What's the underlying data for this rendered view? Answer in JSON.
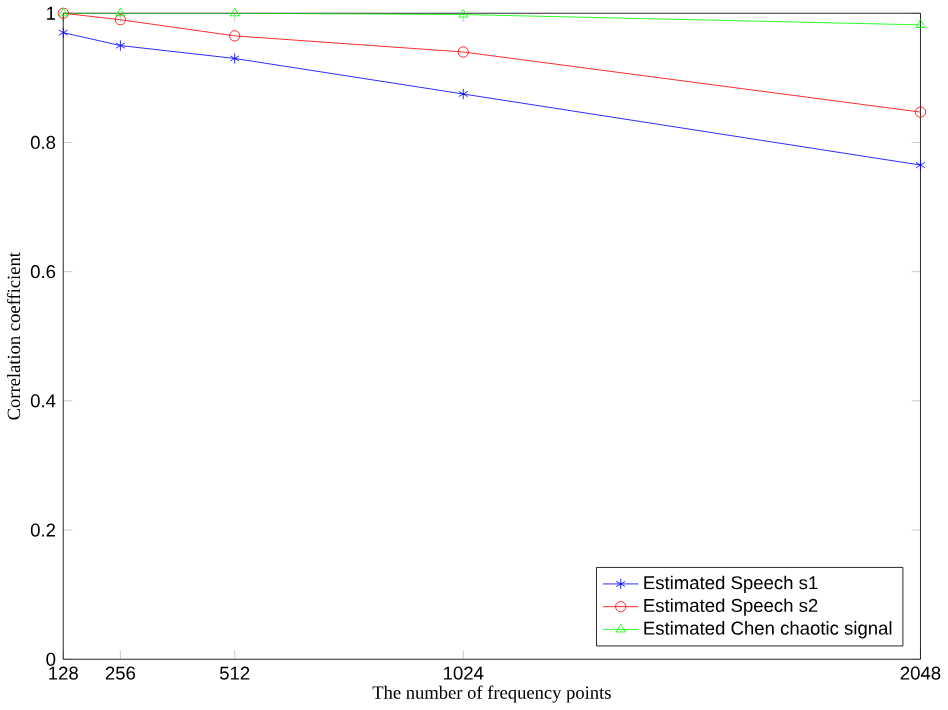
{
  "chart_data": {
    "type": "line",
    "xlabel": "The number of frequency points",
    "ylabel": "Correlation coefficient",
    "x": [
      128,
      256,
      512,
      1024,
      2048
    ],
    "series": [
      {
        "name": "Estimated Speech s1",
        "color": "#0000ff",
        "marker": "cross",
        "values": [
          0.97,
          0.95,
          0.93,
          0.875,
          0.765
        ]
      },
      {
        "name": "Estimated Speech s2",
        "color": "#ff0000",
        "marker": "circle",
        "values": [
          1.0,
          0.99,
          0.965,
          0.94,
          0.847
        ]
      },
      {
        "name": "Estimated Chen chaotic signal",
        "color": "#00ff00",
        "marker": "triangle",
        "values": [
          1.0,
          1.0,
          1.0,
          0.998,
          0.982
        ]
      }
    ],
    "xlim": [
      128,
      2048
    ],
    "ylim": [
      0,
      1
    ],
    "xticks": [
      128,
      256,
      512,
      1024,
      2048
    ],
    "yticks": [
      0,
      0.2,
      0.4,
      0.6,
      0.8,
      1
    ],
    "legend": "bottom right",
    "grid": false,
    "line_style": "solid"
  }
}
